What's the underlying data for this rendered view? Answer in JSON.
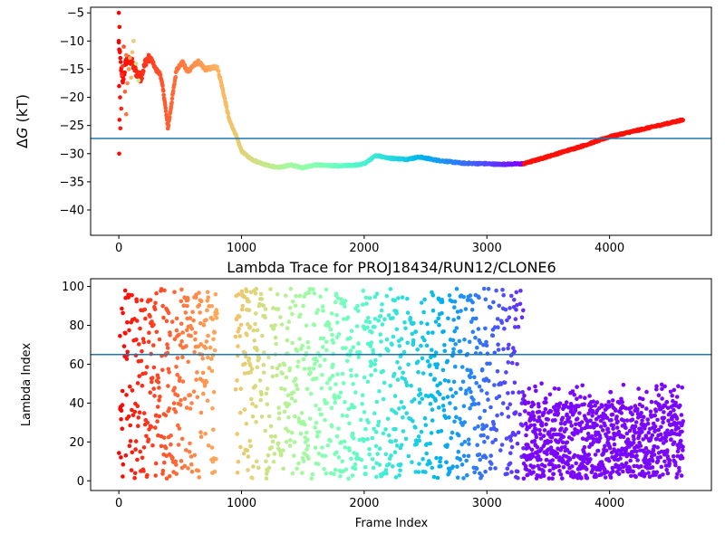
{
  "chart_data": [
    {
      "type": "scatter",
      "title": "",
      "xlabel": "",
      "ylabel": "ΔG (kT)",
      "ylabel_parts": {
        "delta": "Δ",
        "var": "G",
        "unit": " (kT)"
      },
      "xlim": [
        -230,
        4830
      ],
      "ylim": [
        -44.5,
        -4.0
      ],
      "xticks": [
        0,
        1000,
        2000,
        3000,
        4000
      ],
      "xtick_labels": [
        "0",
        "1000",
        "2000",
        "3000",
        "4000"
      ],
      "yticks": [
        -5,
        -10,
        -15,
        -20,
        -25,
        -30,
        -35,
        -40
      ],
      "ytick_labels": [
        "−5",
        "−10",
        "−15",
        "−20",
        "−25",
        "−30",
        "−35",
        "−40"
      ],
      "hline": -27.3,
      "hline_color": "#1f77b4",
      "colormap": "rainbow",
      "n_frames": 4600,
      "profile": [
        [
          0,
          -10.5
        ],
        [
          30,
          -17.5
        ],
        [
          60,
          -13.5
        ],
        [
          100,
          -13.5
        ],
        [
          140,
          -15.5
        ],
        [
          180,
          -16.5
        ],
        [
          220,
          -13.5
        ],
        [
          260,
          -13.0
        ],
        [
          300,
          -15.0
        ],
        [
          340,
          -16.0
        ],
        [
          370,
          -20.0
        ],
        [
          400,
          -25.5
        ],
        [
          430,
          -21.0
        ],
        [
          470,
          -15.0
        ],
        [
          520,
          -13.8
        ],
        [
          560,
          -15.5
        ],
        [
          600,
          -14.5
        ],
        [
          650,
          -13.7
        ],
        [
          700,
          -15.0
        ],
        [
          760,
          -14.8
        ],
        [
          800,
          -14.5
        ],
        [
          830,
          -17.0
        ],
        [
          870,
          -21.0
        ],
        [
          900,
          -24.0
        ],
        [
          950,
          -26.5
        ],
        [
          1000,
          -29.5
        ],
        [
          1050,
          -30.5
        ],
        [
          1100,
          -31.2
        ],
        [
          1200,
          -32.0
        ],
        [
          1300,
          -32.5
        ],
        [
          1400,
          -32.0
        ],
        [
          1500,
          -32.5
        ],
        [
          1600,
          -32.0
        ],
        [
          1800,
          -32.2
        ],
        [
          1950,
          -32.0
        ],
        [
          2000,
          -31.8
        ],
        [
          2100,
          -30.3
        ],
        [
          2200,
          -30.8
        ],
        [
          2350,
          -31.0
        ],
        [
          2450,
          -30.6
        ],
        [
          2600,
          -31.2
        ],
        [
          2800,
          -31.7
        ],
        [
          3000,
          -31.8
        ],
        [
          3100,
          -31.9
        ],
        [
          3300,
          -31.8
        ],
        [
          3500,
          -30.5
        ],
        [
          3800,
          -28.5
        ],
        [
          4000,
          -27.0
        ],
        [
          4300,
          -25.5
        ],
        [
          4600,
          -24.0
        ]
      ],
      "early_scatter": [
        [
          0,
          -5.0
        ],
        [
          5,
          -7.5
        ],
        [
          0,
          -10.0
        ],
        [
          8,
          -12.0
        ],
        [
          2,
          -18.0
        ],
        [
          10,
          -20.0
        ],
        [
          5,
          -24.0
        ],
        [
          12,
          -25.5
        ],
        [
          3,
          -30.0
        ],
        [
          20,
          -22.0
        ],
        [
          25,
          -16.0
        ],
        [
          30,
          -14.5
        ],
        [
          40,
          -11.0
        ],
        [
          50,
          -19.0
        ],
        [
          60,
          -12.5
        ],
        [
          70,
          -17.5
        ],
        [
          80,
          -15.0
        ],
        [
          90,
          -13.0
        ],
        [
          100,
          -16.5
        ],
        [
          110,
          -12.0
        ],
        [
          120,
          -10.0
        ],
        [
          140,
          -14.0
        ],
        [
          160,
          -17.0
        ],
        [
          60,
          -23.0
        ]
      ]
    },
    {
      "type": "scatter",
      "title": "Lambda Trace for PROJ18434/RUN12/CLONE6",
      "xlabel": "Frame Index",
      "ylabel": "Lambda Index",
      "xlim": [
        -230,
        4830
      ],
      "ylim": [
        -5,
        104
      ],
      "xticks": [
        0,
        1000,
        2000,
        3000,
        4000
      ],
      "xtick_labels": [
        "0",
        "1000",
        "2000",
        "3000",
        "4000"
      ],
      "yticks": [
        0,
        20,
        40,
        60,
        80,
        100
      ],
      "ytick_labels": [
        "0",
        "20",
        "40",
        "60",
        "80",
        "100"
      ],
      "hline": 65,
      "hline_color": "#1f77b4",
      "colormap": "rainbow",
      "n_frames": 4600,
      "regimes": [
        {
          "from": 0,
          "to": 3300,
          "lambda_range": [
            0,
            100
          ]
        },
        {
          "from": 3300,
          "to": 4600,
          "lambda_range": [
            0,
            50
          ]
        }
      ]
    }
  ]
}
